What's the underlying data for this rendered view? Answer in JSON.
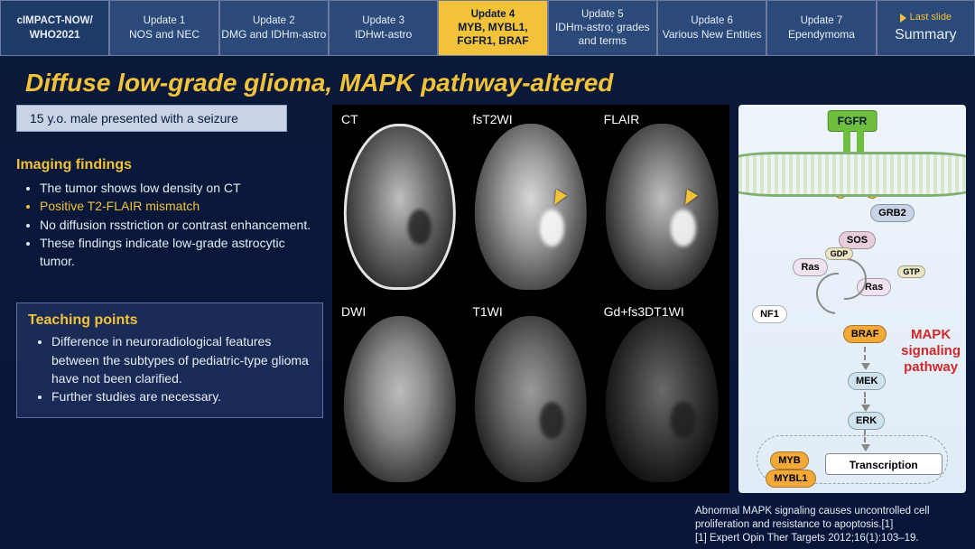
{
  "colors": {
    "bg_top": "#0a1a3a",
    "bg_bottom": "#08153a",
    "tab_bg": "#2b4a7a",
    "tab_first_bg": "#1e3a66",
    "tab_border": "#6c7aa0",
    "tab_text": "#e6ecf5",
    "accent_yellow": "#f2c238",
    "accent_orange": "#f2a938",
    "patient_bg": "#c9d3e6",
    "body_text": "#e6ecf5",
    "pathway_red": "#d02828",
    "diagram_bg_top": "#eef4fb",
    "diagram_bg_bot": "#e0ecf7",
    "fgfr_green": "#6fbf3f"
  },
  "tabs": [
    {
      "top": "cIMPACT-NOW/",
      "bottom": "WHO2021",
      "kind": "first"
    },
    {
      "top": "Update 1",
      "bottom": "NOS and NEC"
    },
    {
      "top": "Update 2",
      "bottom": "DMG and IDHm-astro"
    },
    {
      "top": "Update 3",
      "bottom": "IDHwt-astro"
    },
    {
      "top": "Update 4",
      "bottom": "MYB, MYBL1, FGFR1, BRAF",
      "kind": "active"
    },
    {
      "top": "Update 5",
      "bottom": "IDHm-astro; grades and terms"
    },
    {
      "top": "Update 6",
      "bottom": "Various New Entities"
    },
    {
      "top": "Update 7",
      "bottom": "Ependymoma"
    },
    {
      "top": "Last slide",
      "bottom": "Summary",
      "kind": "last"
    }
  ],
  "title": "Diffuse low-grade glioma, MAPK pathway-altered",
  "patient": "15 y.o. male presented with a seizure",
  "findings_heading": "Imaging findings",
  "findings": [
    {
      "text": "The tumor shows low density on CT",
      "hl": false
    },
    {
      "text": "Positive T2-FLAIR mismatch",
      "hl": true
    },
    {
      "text": "No diffusion rsstriction or contrast enhancement.",
      "hl": false
    },
    {
      "text": "These findings indicate low-grade astrocytic tumor.",
      "hl": false
    }
  ],
  "teaching_heading": "Teaching points",
  "teaching": [
    "Difference in neuroradiological features between the subtypes of pediatric-type glioma have not been clarified.",
    "Further studies are necessary."
  ],
  "images": [
    {
      "label": "CT",
      "variant": "ct",
      "lesion": "dark",
      "arrow": false
    },
    {
      "label": "fsT2WI",
      "variant": "t2",
      "lesion": "bright",
      "arrow": true
    },
    {
      "label": "FLAIR",
      "variant": "flair",
      "lesion": "bright",
      "arrow": true
    },
    {
      "label": "DWI",
      "variant": "dwi",
      "lesion": null,
      "arrow": false
    },
    {
      "label": "T1WI",
      "variant": "t1",
      "lesion": "dark",
      "arrow": false
    },
    {
      "label": "Gd+fs3DT1WI",
      "variant": "gd",
      "lesion": "dark",
      "arrow": false
    }
  ],
  "diagram": {
    "receptor": "FGFR",
    "phos": "P",
    "nodes": {
      "grb2": "GRB2",
      "sos": "SOS",
      "ras1": "Ras",
      "ras2": "Ras",
      "gdp": "GDP",
      "gtp": "GTP",
      "nf1": "NF1",
      "braf": "BRAF",
      "mek": "MEK",
      "erk": "ERK",
      "myb": "MYB",
      "mybl1": "MYBL1"
    },
    "transcription": "Transcription",
    "pathway_label_l1": "MAPK",
    "pathway_label_l2": "signaling",
    "pathway_label_l3": "pathway"
  },
  "caption_l1": "Abnormal MAPK signaling causes uncontrolled cell proliferation and resistance to apoptosis.[1]",
  "caption_l2": "[1] Expert Opin Ther Targets 2012;16(1):103–19.",
  "last_slide_label": "Last slide",
  "summary_label": "Summary"
}
